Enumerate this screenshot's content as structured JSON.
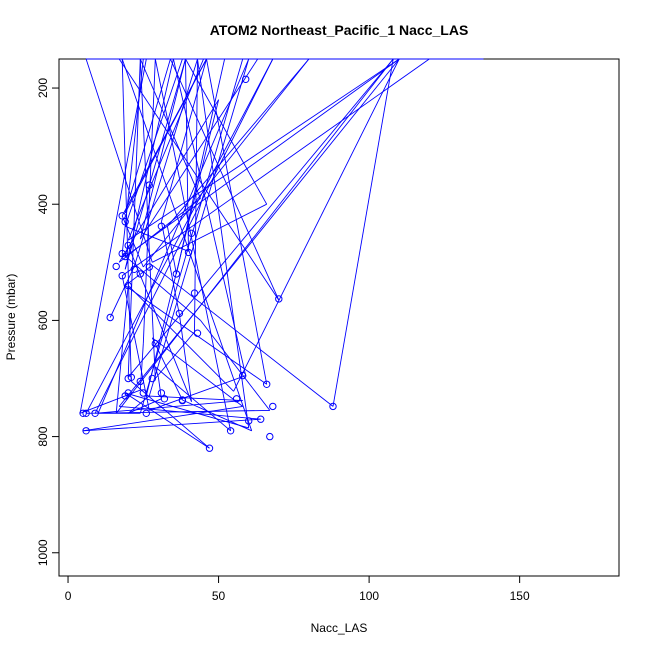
{
  "chart_data": {
    "type": "line",
    "title": "ATOM2 Northeast_Pacific_1 Nacc_LAS",
    "xlabel": "Nacc_LAS",
    "ylabel": "Pressure (mbar)",
    "xlim": [
      -3,
      183
    ],
    "ylim": [
      1040,
      150
    ],
    "y_reversed": true,
    "x_ticks": [
      0,
      50,
      100,
      150
    ],
    "y_ticks": [
      200,
      400,
      600,
      800,
      1000
    ],
    "grid": false,
    "legend": "none",
    "line_color": "#0000ff",
    "series": [
      {
        "x": [
          14,
          22,
          43,
          60,
          19,
          47,
          21,
          18,
          61,
          38,
          28,
          58,
          5,
          64,
          17,
          110,
          19,
          20,
          41,
          37,
          31,
          46,
          19,
          34,
          39,
          19,
          35,
          59,
          27,
          18,
          120,
          25,
          18,
          44,
          67,
          6,
          68,
          9,
          58,
          26,
          50,
          17,
          44,
          24,
          20,
          108,
          88,
          28,
          19,
          66,
          46,
          18,
          25,
          80,
          33,
          36,
          52,
          45,
          20,
          110,
          55,
          20,
          16,
          108,
          34,
          70,
          17,
          138,
          24,
          29,
          42,
          43,
          80,
          6,
          28,
          66,
          39,
          52,
          26,
          4,
          24,
          25,
          29,
          54,
          29,
          30,
          31,
          20,
          27,
          60,
          10,
          24,
          58,
          63,
          24,
          39,
          40,
          19,
          38,
          16
        ],
        "y": [
          595,
          507,
          148,
          785,
          725,
          820,
          705,
          148,
          790,
          737,
          630,
          748,
          790,
          770,
          748,
          148,
          490,
          471,
          740,
          590,
          430,
          148,
          415,
          148,
          148,
          512,
          148,
          695,
          755,
          523,
          148,
          148,
          485,
          600,
          755,
          760,
          148,
          760,
          738,
          730,
          220,
          500,
          390,
          148,
          698,
          148,
          748,
          505,
          540,
          710,
          148,
          420,
          508,
          148,
          438,
          520,
          148,
          148,
          462,
          148,
          722,
          540,
          760,
          148,
          148,
          565,
          148,
          148,
          148,
          700,
          620,
          148,
          148,
          148,
          500,
          400,
          148,
          148,
          148,
          760,
          720,
          640,
          148,
          790,
          680,
          698,
          735,
          760,
          730,
          148,
          760,
          760,
          148,
          148,
          460,
          148,
          481,
          438,
          148,
          148
        ]
      }
    ],
    "markers": {
      "x": [
        14,
        16,
        18,
        18,
        18,
        19,
        19,
        20,
        20,
        20,
        22,
        24,
        27,
        27,
        31,
        36,
        37,
        40,
        41,
        42,
        43,
        47,
        59,
        70,
        5,
        6,
        6,
        9,
        19,
        20,
        21,
        24,
        25,
        26,
        28,
        29,
        31,
        32,
        38,
        38,
        54,
        56,
        58,
        60,
        64,
        66,
        67,
        68,
        88
      ],
      "y": [
        595,
        507,
        420,
        485,
        523,
        430,
        490,
        471,
        540,
        700,
        512,
        520,
        508,
        367,
        438,
        520,
        588,
        483,
        450,
        553,
        622,
        820,
        185,
        563,
        760,
        760,
        790,
        760,
        730,
        725,
        698,
        705,
        725,
        760,
        700,
        640,
        725,
        735,
        737,
        738,
        790,
        735,
        695,
        773,
        770,
        710,
        800,
        748,
        748
      ]
    }
  }
}
